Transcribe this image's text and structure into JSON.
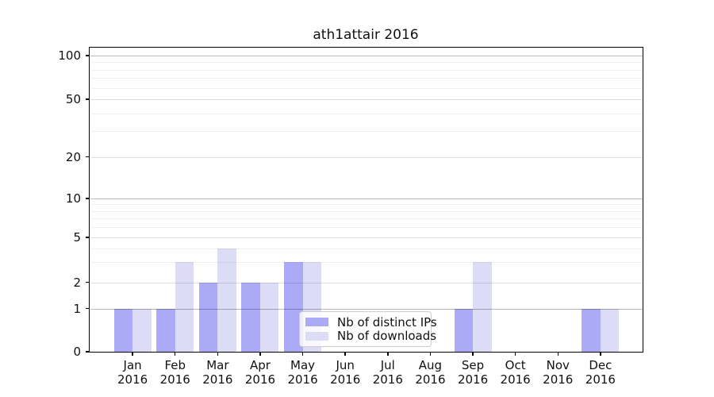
{
  "chart_data": {
    "type": "bar",
    "title": "ath1attair 2016",
    "categories": [
      "Jan",
      "Feb",
      "Mar",
      "Apr",
      "May",
      "Jun",
      "Jul",
      "Aug",
      "Sep",
      "Oct",
      "Nov",
      "Dec"
    ],
    "category_year": "2016",
    "series": [
      {
        "name": "Nb of distinct IPs",
        "color": "#aaaaf7",
        "values": [
          1,
          1,
          2,
          2,
          3,
          0,
          0,
          0,
          1,
          0,
          0,
          1
        ]
      },
      {
        "name": "Nb of downloads",
        "color": "#dcdcf7",
        "values": [
          1,
          3,
          4,
          2,
          3,
          0,
          0,
          0,
          3,
          0,
          0,
          1
        ]
      }
    ],
    "yticks": [
      0,
      1,
      2,
      5,
      10,
      20,
      50,
      100
    ],
    "ylim": [
      0,
      100
    ],
    "yscale": "log-like (0,1,2,5,10,20,50,100 ladder)",
    "grid": "on (log minors 3,4,6,7,8,9,30,40,60,70,80,90)",
    "legend_position": "lower center",
    "xlabel": "",
    "ylabel": ""
  }
}
